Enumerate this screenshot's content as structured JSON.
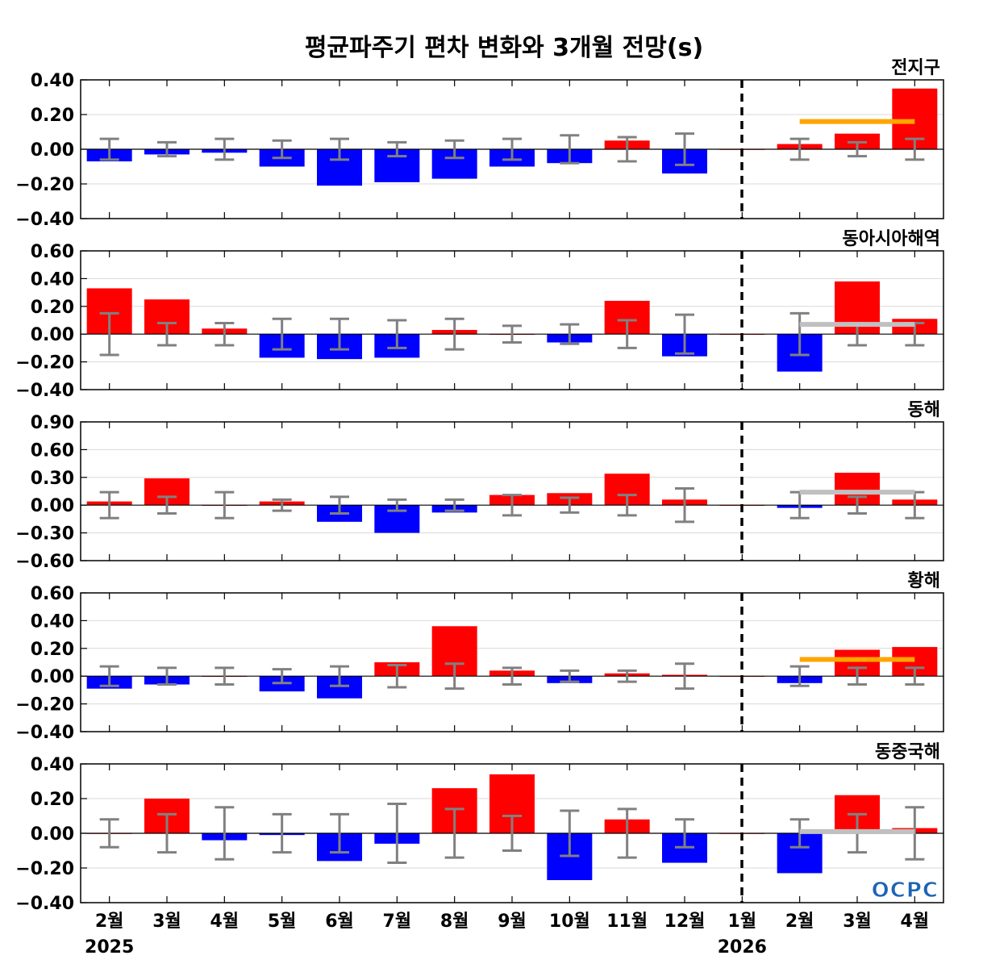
{
  "chart_data": {
    "type": "bar",
    "title": "평균파주기 편차 변화와 3개월 전망(s)",
    "categories": [
      "2월",
      "3월",
      "4월",
      "5월",
      "6월",
      "7월",
      "8월",
      "9월",
      "10월",
      "11월",
      "12월",
      "1월",
      "2월",
      "3월",
      "4월"
    ],
    "year_labels": [
      {
        "category_index": 0,
        "label": "2025"
      },
      {
        "category_index": 11,
        "label": "2026"
      }
    ],
    "divider_after_category": "1월",
    "colors": {
      "positive": "#ff0000",
      "negative": "#0000ff",
      "errorbar": "#808080",
      "divider": "#000000"
    },
    "logo_text": "OCPC",
    "panels": [
      {
        "region": "전지구",
        "ylim": [
          -0.4,
          0.4
        ],
        "yticks": [
          0.4,
          0.2,
          0.0,
          -0.2,
          -0.4
        ],
        "ytick_labels": [
          "0.40",
          "0.20",
          "0.00",
          "−0.20",
          "−0.40"
        ],
        "values": [
          -0.07,
          -0.03,
          -0.02,
          -0.1,
          -0.21,
          -0.19,
          -0.17,
          -0.1,
          -0.08,
          0.05,
          -0.14,
          0.0,
          0.03,
          0.09,
          0.35
        ],
        "error": [
          0.06,
          0.04,
          0.06,
          0.05,
          0.06,
          0.04,
          0.05,
          0.06,
          0.08,
          0.07,
          0.09,
          0.0,
          0.06,
          0.04,
          0.06
        ],
        "forecast": {
          "value": 0.16,
          "color": "#ffa500"
        }
      },
      {
        "region": "동아시아해역",
        "ylim": [
          -0.4,
          0.6
        ],
        "yticks": [
          0.6,
          0.4,
          0.2,
          0.0,
          -0.2,
          -0.4
        ],
        "ytick_labels": [
          "0.60",
          "0.40",
          "0.20",
          "0.00",
          "−0.20",
          "−0.40"
        ],
        "values": [
          0.33,
          0.25,
          0.04,
          -0.17,
          -0.18,
          -0.17,
          0.03,
          0.0,
          -0.06,
          0.24,
          -0.16,
          0.0,
          -0.27,
          0.38,
          0.11
        ],
        "error": [
          0.15,
          0.08,
          0.08,
          0.11,
          0.11,
          0.1,
          0.11,
          0.06,
          0.07,
          0.1,
          0.14,
          0.0,
          0.15,
          0.08,
          0.08
        ],
        "forecast": {
          "value": 0.07,
          "color": "#c0c0c0"
        }
      },
      {
        "region": "동해",
        "ylim": [
          -0.6,
          0.9
        ],
        "yticks": [
          0.9,
          0.6,
          0.3,
          0.0,
          -0.3,
          -0.6
        ],
        "ytick_labels": [
          "0.90",
          "0.60",
          "0.30",
          "0.00",
          "−0.30",
          "−0.60"
        ],
        "values": [
          0.04,
          0.29,
          0.0,
          0.04,
          -0.18,
          -0.3,
          -0.08,
          0.11,
          0.13,
          0.34,
          0.06,
          0.0,
          -0.03,
          0.35,
          0.06
        ],
        "error": [
          0.14,
          0.09,
          0.14,
          0.06,
          0.09,
          0.06,
          0.06,
          0.11,
          0.08,
          0.11,
          0.18,
          0.0,
          0.14,
          0.09,
          0.14
        ],
        "forecast": {
          "value": 0.14,
          "color": "#c0c0c0"
        }
      },
      {
        "region": "황해",
        "ylim": [
          -0.4,
          0.6
        ],
        "yticks": [
          0.6,
          0.4,
          0.2,
          0.0,
          -0.2,
          -0.4
        ],
        "ytick_labels": [
          "0.60",
          "0.40",
          "0.20",
          "0.00",
          "−0.20",
          "−0.40"
        ],
        "values": [
          -0.09,
          -0.06,
          0.0,
          -0.11,
          -0.16,
          0.1,
          0.36,
          0.04,
          -0.05,
          0.02,
          0.01,
          0.0,
          -0.05,
          0.19,
          0.21
        ],
        "error": [
          0.07,
          0.06,
          0.06,
          0.05,
          0.07,
          0.08,
          0.09,
          0.06,
          0.04,
          0.04,
          0.09,
          0.0,
          0.07,
          0.06,
          0.06
        ],
        "forecast": {
          "value": 0.12,
          "color": "#ffa500"
        }
      },
      {
        "region": "동중국해",
        "ylim": [
          -0.4,
          0.4
        ],
        "yticks": [
          0.4,
          0.2,
          0.0,
          -0.2,
          -0.4
        ],
        "ytick_labels": [
          "0.40",
          "0.20",
          "0.00",
          "−0.20",
          "−0.40"
        ],
        "values": [
          0.0,
          0.2,
          -0.04,
          -0.01,
          -0.16,
          -0.06,
          0.26,
          0.34,
          -0.27,
          0.08,
          -0.17,
          0.0,
          -0.23,
          0.22,
          0.03
        ],
        "error": [
          0.08,
          0.11,
          0.15,
          0.11,
          0.11,
          0.17,
          0.14,
          0.1,
          0.13,
          0.14,
          0.08,
          0.0,
          0.08,
          0.11,
          0.15
        ],
        "forecast": {
          "value": 0.01,
          "color": "#c0c0c0"
        }
      }
    ]
  }
}
